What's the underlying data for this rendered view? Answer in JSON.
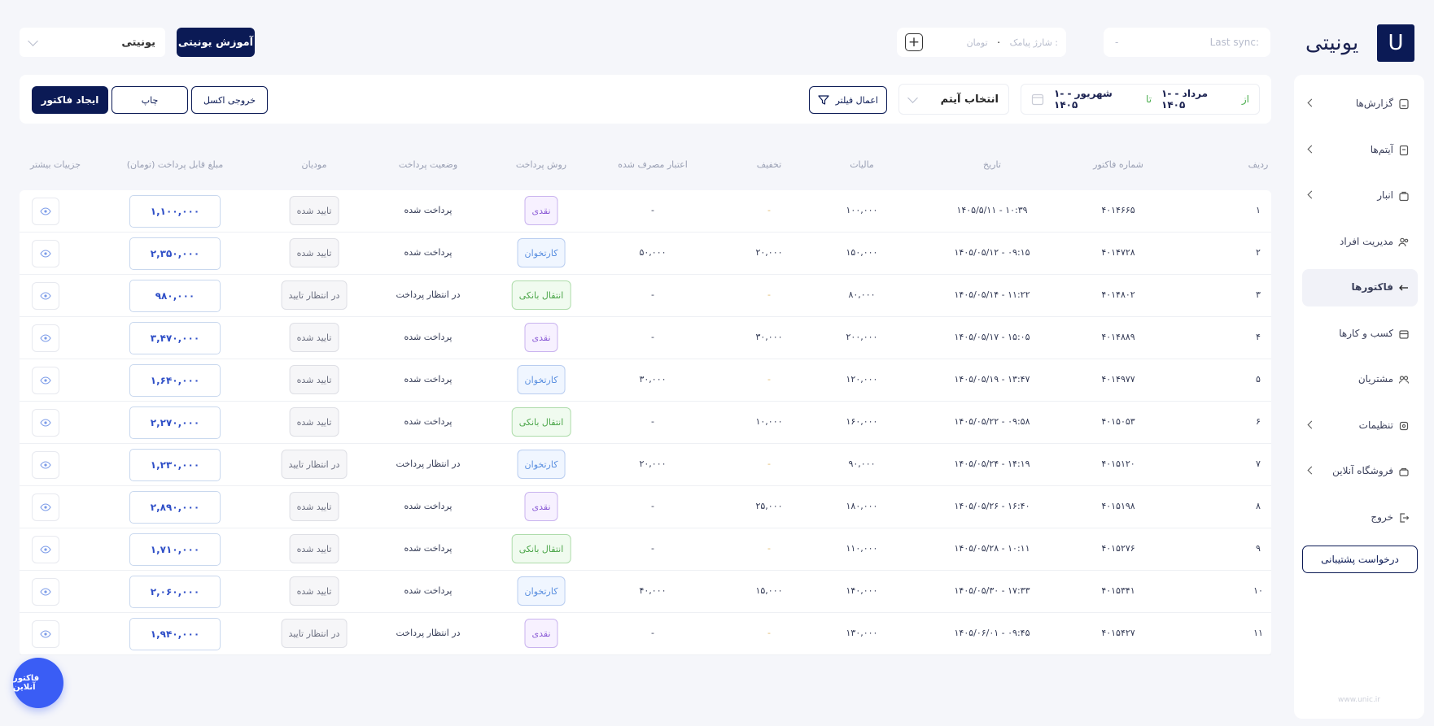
{
  "brand": {
    "logo_text": "یونیتی",
    "logo_mark": "U"
  },
  "header": {
    "sync_label": "Last sync:",
    "sync_value": "-",
    "wallet_label": "شارژ پیامک :",
    "wallet_value": "۰",
    "wallet_unit": "تومان",
    "training_button": "آموزش یونیتی",
    "workspace_select": "یونیتی"
  },
  "sidebar": {
    "items": [
      {
        "label": "گزارش‌ها",
        "icon": "report-icon",
        "chevron": true
      },
      {
        "label": "آیتم‌ها",
        "icon": "items-icon",
        "chevron": true
      },
      {
        "label": "انبار",
        "icon": "warehouse-icon",
        "chevron": true
      },
      {
        "label": "مدیریت افراد",
        "icon": "people-icon",
        "chevron": false
      },
      {
        "label": "فاکتورها",
        "icon": "invoice-icon",
        "chevron": false,
        "active": true
      },
      {
        "label": "کسب و کارها",
        "icon": "business-icon",
        "chevron": false
      },
      {
        "label": "مشتریان",
        "icon": "customers-icon",
        "chevron": false
      },
      {
        "label": "تنظیمات",
        "icon": "settings-icon",
        "chevron": true
      },
      {
        "label": "فروشگاه آنلاین",
        "icon": "store-icon",
        "chevron": true
      },
      {
        "label": "خروج",
        "icon": "logout-icon",
        "chevron": false
      }
    ],
    "support_button": "درخواست پشتیبانی",
    "footer_url": "www.unic.ir"
  },
  "filters": {
    "from_label": "از",
    "from_date": "۱- مرداد - ۱۴۰۵",
    "to_label": "تا",
    "to_date": "۱- شهریور - ۱۴۰۵",
    "item_select": "انتخاب آیتم",
    "apply_filter": "اعمال فیلتر",
    "excel_button": "خروجی اکسل",
    "print_button": "چاپ",
    "create_button": "ایجاد فاکتور"
  },
  "table": {
    "headers": {
      "row": "ردیف",
      "invoice_no": "شماره فاکتور",
      "date": "تاریخ",
      "tax": "مالیات",
      "discount": "تخفیف",
      "credit": "اعتبار مصرف شده",
      "method": "روش پرداخت",
      "status": "وضعیت پرداخت",
      "moadian": "مودیان",
      "amount": "مبلغ قابل پرداخت (تومان)",
      "details": "جزییات بیشتر"
    },
    "rows": [
      {
        "row": "۱",
        "invoice_no": "۴۰۱۴۶۶۵",
        "date": "۱۴۰۵/۵/۱۱ - ۱۰:۳۹",
        "tax": "۱۰۰,۰۰۰",
        "discount": "-",
        "credit": "-",
        "method": "نقدی",
        "method_type": "cash",
        "status": "پرداخت شده",
        "moadian": "تایید شده",
        "amount": "۱,۱۰۰,۰۰۰"
      },
      {
        "row": "۲",
        "invoice_no": "۴۰۱۴۷۲۸",
        "date": "۱۴۰۵/۰۵/۱۲ - ۰۹:۱۵",
        "tax": "۱۵۰,۰۰۰",
        "discount": "۲۰,۰۰۰",
        "credit": "۵۰,۰۰۰",
        "method": "کارتخوان",
        "method_type": "card",
        "status": "پرداخت شده",
        "moadian": "تایید شده",
        "amount": "۲,۳۵۰,۰۰۰"
      },
      {
        "row": "۳",
        "invoice_no": "۴۰۱۴۸۰۲",
        "date": "۱۴۰۵/۰۵/۱۴ - ۱۱:۲۲",
        "tax": "۸۰,۰۰۰",
        "discount": "-",
        "credit": "-",
        "method": "انتقال بانکی",
        "method_type": "bank",
        "status": "در انتظار پرداخت",
        "moadian": "در انتظار تایید",
        "amount": "۹۸۰,۰۰۰"
      },
      {
        "row": "۴",
        "invoice_no": "۴۰۱۴۸۸۹",
        "date": "۱۴۰۵/۰۵/۱۷ - ۱۵:۰۵",
        "tax": "۲۰۰,۰۰۰",
        "discount": "۳۰,۰۰۰",
        "credit": "-",
        "method": "نقدی",
        "method_type": "cash",
        "status": "پرداخت شده",
        "moadian": "تایید شده",
        "amount": "۳,۴۷۰,۰۰۰"
      },
      {
        "row": "۵",
        "invoice_no": "۴۰۱۴۹۷۷",
        "date": "۱۴۰۵/۰۵/۱۹ - ۱۳:۴۷",
        "tax": "۱۲۰,۰۰۰",
        "discount": "-",
        "credit": "۳۰,۰۰۰",
        "method": "کارتخوان",
        "method_type": "card",
        "status": "پرداخت شده",
        "moadian": "تایید شده",
        "amount": "۱,۶۴۰,۰۰۰"
      },
      {
        "row": "۶",
        "invoice_no": "۴۰۱۵۰۵۳",
        "date": "۱۴۰۵/۰۵/۲۲ - ۰۹:۵۸",
        "tax": "۱۶۰,۰۰۰",
        "discount": "۱۰,۰۰۰",
        "credit": "-",
        "method": "انتقال بانکی",
        "method_type": "bank",
        "status": "پرداخت شده",
        "moadian": "تایید شده",
        "amount": "۲,۲۷۰,۰۰۰"
      },
      {
        "row": "۷",
        "invoice_no": "۴۰۱۵۱۲۰",
        "date": "۱۴۰۵/۰۵/۲۴ - ۱۴:۱۹",
        "tax": "۹۰,۰۰۰",
        "discount": "-",
        "credit": "۲۰,۰۰۰",
        "method": "کارتخوان",
        "method_type": "card",
        "status": "در انتظار پرداخت",
        "moadian": "در انتظار تایید",
        "amount": "۱,۲۳۰,۰۰۰"
      },
      {
        "row": "۸",
        "invoice_no": "۴۰۱۵۱۹۸",
        "date": "۱۴۰۵/۰۵/۲۶ - ۱۶:۴۰",
        "tax": "۱۸۰,۰۰۰",
        "discount": "۲۵,۰۰۰",
        "credit": "-",
        "method": "نقدی",
        "method_type": "cash",
        "status": "پرداخت شده",
        "moadian": "تایید شده",
        "amount": "۲,۸۹۰,۰۰۰"
      },
      {
        "row": "۹",
        "invoice_no": "۴۰۱۵۲۷۶",
        "date": "۱۴۰۵/۰۵/۲۸ - ۱۰:۱۱",
        "tax": "۱۱۰,۰۰۰",
        "discount": "-",
        "credit": "-",
        "method": "انتقال بانکی",
        "method_type": "bank",
        "status": "پرداخت شده",
        "moadian": "تایید شده",
        "amount": "۱,۷۱۰,۰۰۰"
      },
      {
        "row": "۱۰",
        "invoice_no": "۴۰۱۵۳۴۱",
        "date": "۱۴۰۵/۰۵/۳۰ - ۱۷:۳۳",
        "tax": "۱۴۰,۰۰۰",
        "discount": "۱۵,۰۰۰",
        "credit": "۴۰,۰۰۰",
        "method": "کارتخوان",
        "method_type": "card",
        "status": "پرداخت شده",
        "moadian": "تایید شده",
        "amount": "۲,۰۶۰,۰۰۰"
      },
      {
        "row": "۱۱",
        "invoice_no": "۴۰۱۵۴۲۷",
        "date": "۱۴۰۵/۰۶/۰۱ - ۰۹:۴۵",
        "tax": "۱۳۰,۰۰۰",
        "discount": "-",
        "credit": "-",
        "method": "نقدی",
        "method_type": "cash",
        "status": "در انتظار پرداخت",
        "moadian": "در انتظار تایید",
        "amount": "۱,۹۴۰,۰۰۰"
      }
    ]
  },
  "online_invoice_button": "فاکتور آنلاین"
}
